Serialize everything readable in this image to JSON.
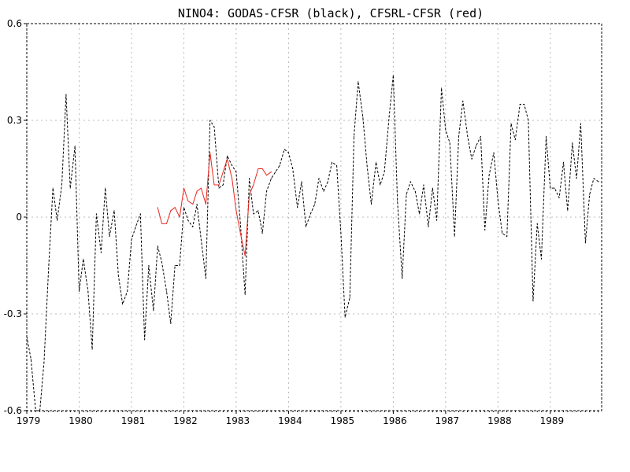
{
  "chart_data": {
    "type": "line",
    "title": "NINO4: GODAS-CFSR (black), CFSRL-CFSR (red)",
    "xlabel": "",
    "ylabel": "",
    "xlim": [
      1979.0,
      1989.98
    ],
    "ylim": [
      -0.6,
      0.6
    ],
    "yticks": [
      -0.6,
      -0.3,
      0,
      0.3,
      0.6
    ],
    "ytick_labels": [
      "-0.6",
      "-0.3",
      "0",
      "0.3",
      "0.6"
    ],
    "xticks": [
      1979,
      1980,
      1981,
      1982,
      1983,
      1984,
      1985,
      1986,
      1987,
      1988,
      1989
    ],
    "xtick_labels": [
      "1979",
      "1980",
      "1981",
      "1982",
      "1983",
      "1984",
      "1985",
      "1986",
      "1987",
      "1988",
      "1989"
    ],
    "grid": true,
    "series": [
      {
        "color": "#000000",
        "style": "dashed",
        "x": [
          1979.0,
          1979.08,
          1979.17,
          1979.25,
          1979.33,
          1979.42,
          1979.5,
          1979.58,
          1979.67,
          1979.75,
          1979.83,
          1979.92,
          1980.0,
          1980.08,
          1980.17,
          1980.25,
          1980.33,
          1980.42,
          1980.5,
          1980.58,
          1980.67,
          1980.75,
          1980.83,
          1980.92,
          1981.0,
          1981.08,
          1981.17,
          1981.25,
          1981.33,
          1981.42,
          1981.5,
          1981.58,
          1981.67,
          1981.75,
          1981.83,
          1981.92,
          1982.0,
          1982.08,
          1982.17,
          1982.25,
          1982.33,
          1982.42,
          1982.5,
          1982.58,
          1982.67,
          1982.75,
          1982.83,
          1982.92,
          1983.0,
          1983.08,
          1983.17,
          1983.25,
          1983.33,
          1983.42,
          1983.5,
          1983.58,
          1983.67,
          1983.75,
          1983.83,
          1983.92,
          1984.0,
          1984.08,
          1984.17,
          1984.25,
          1984.33,
          1984.42,
          1984.5,
          1984.58,
          1984.67,
          1984.75,
          1984.83,
          1984.92,
          1985.0,
          1985.08,
          1985.17,
          1985.25,
          1985.33,
          1985.42,
          1985.5,
          1985.58,
          1985.67,
          1985.75,
          1985.83,
          1985.92,
          1986.0,
          1986.08,
          1986.17,
          1986.25,
          1986.33,
          1986.42,
          1986.5,
          1986.58,
          1986.67,
          1986.75,
          1986.83,
          1986.92,
          1987.0,
          1987.08,
          1987.17,
          1987.25,
          1987.33,
          1987.42,
          1987.5,
          1987.58,
          1987.67,
          1987.75,
          1987.83,
          1987.92,
          1988.0,
          1988.08,
          1988.17,
          1988.25,
          1988.33,
          1988.42,
          1988.5,
          1988.58,
          1988.67,
          1988.75,
          1988.83,
          1988.92,
          1989.0,
          1989.08,
          1989.17,
          1989.25,
          1989.33,
          1989.42,
          1989.5,
          1989.58,
          1989.67,
          1989.75,
          1989.83,
          1989.92
        ],
        "values": [
          -0.37,
          -0.44,
          -0.6,
          -0.6,
          -0.45,
          -0.15,
          0.09,
          -0.01,
          0.1,
          0.38,
          0.09,
          0.22,
          -0.23,
          -0.13,
          -0.23,
          -0.41,
          0.01,
          -0.11,
          0.09,
          -0.06,
          0.02,
          -0.18,
          -0.27,
          -0.23,
          -0.07,
          -0.03,
          0.01,
          -0.38,
          -0.15,
          -0.29,
          -0.09,
          -0.14,
          -0.23,
          -0.33,
          -0.15,
          -0.15,
          0.03,
          -0.01,
          -0.03,
          0.04,
          -0.07,
          -0.19,
          0.3,
          0.28,
          0.09,
          0.1,
          0.19,
          0.16,
          0.14,
          -0.02,
          -0.24,
          0.12,
          0.01,
          0.02,
          -0.05,
          0.08,
          0.12,
          0.14,
          0.16,
          0.21,
          0.2,
          0.15,
          0.03,
          0.11,
          -0.03,
          0.01,
          0.04,
          0.12,
          0.08,
          0.11,
          0.17,
          0.16,
          -0.05,
          -0.31,
          -0.25,
          0.25,
          0.42,
          0.31,
          0.16,
          0.04,
          0.17,
          0.1,
          0.14,
          0.31,
          0.44,
          0.05,
          -0.19,
          0.07,
          0.11,
          0.08,
          0.01,
          0.1,
          -0.03,
          0.09,
          -0.01,
          0.4,
          0.27,
          0.23,
          -0.06,
          0.25,
          0.36,
          0.25,
          0.18,
          0.22,
          0.25,
          -0.04,
          0.13,
          0.2,
          0.05,
          -0.05,
          -0.06,
          0.29,
          0.24,
          0.35,
          0.35,
          0.3,
          -0.26,
          -0.02,
          -0.13,
          0.25,
          0.09,
          0.09,
          0.06,
          0.17,
          0.02,
          0.23,
          0.12,
          0.29,
          -0.08,
          0.07,
          0.12,
          0.11
        ]
      },
      {
        "color": "#e8261e",
        "style": "solid",
        "x": [
          1981.5,
          1981.58,
          1981.67,
          1981.75,
          1981.83,
          1981.92,
          1982.0,
          1982.08,
          1982.17,
          1982.25,
          1982.33,
          1982.42,
          1982.5,
          1982.58,
          1982.67,
          1982.75,
          1982.83,
          1982.92,
          1983.0,
          1983.08,
          1983.17,
          1983.25,
          1983.33,
          1983.42,
          1983.5,
          1983.58,
          1983.67
        ],
        "values": [
          0.03,
          -0.02,
          -0.02,
          0.02,
          0.03,
          0.0,
          0.09,
          0.05,
          0.04,
          0.08,
          0.09,
          0.04,
          0.2,
          0.1,
          0.1,
          0.14,
          0.18,
          0.12,
          0.02,
          -0.05,
          -0.12,
          0.07,
          0.1,
          0.15,
          0.15,
          0.13,
          0.14
        ]
      }
    ]
  }
}
